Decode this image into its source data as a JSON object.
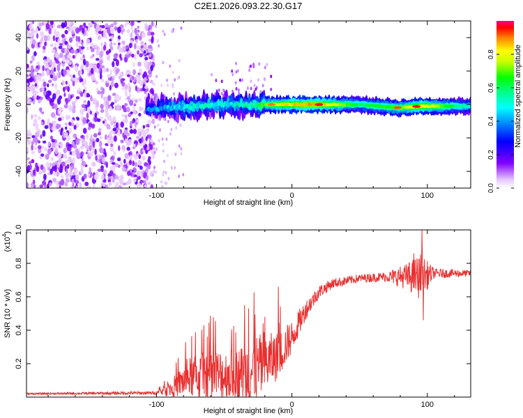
{
  "page": {
    "title": "C2E1.2026.093.22.30.G17"
  },
  "chart_data": [
    {
      "type": "heatmap",
      "title": "C2E1.2026.093.22.30.G17",
      "xlabel": "Height of straight line (km)",
      "ylabel": "Frequency (Hz)",
      "xlim": [
        -196,
        132
      ],
      "ylim": [
        -50,
        50
      ],
      "x_ticks": [
        {
          "v": -100,
          "label": "-100"
        },
        {
          "v": 0,
          "label": "0"
        },
        {
          "v": 100,
          "label": "100"
        }
      ],
      "y_ticks": [
        {
          "v": 40,
          "label": "40"
        },
        {
          "v": 20,
          "label": "20"
        },
        {
          "v": 0,
          "label": "0"
        },
        {
          "v": -20,
          "label": "-20"
        },
        {
          "v": -40,
          "label": "-40"
        }
      ],
      "colorbar": {
        "label": "Normalized spectral amplitude",
        "range": [
          0,
          1
        ],
        "ticks": [
          {
            "v": 0.0,
            "label": "0.0"
          },
          {
            "v": 0.2,
            "label": "0.2"
          },
          {
            "v": 0.4,
            "label": "0.4"
          },
          {
            "v": 0.6,
            "label": "0.6"
          },
          {
            "v": 0.8,
            "label": "0.8"
          }
        ]
      },
      "noise_region_x": [
        -196,
        -102
      ],
      "signal_track": [
        {
          "x": -107,
          "f": -3,
          "amp": 0.35
        },
        {
          "x": -90,
          "f": -2,
          "amp": 0.45
        },
        {
          "x": -70,
          "f": -1,
          "amp": 0.5
        },
        {
          "x": -50,
          "f": 0,
          "amp": 0.5
        },
        {
          "x": -30,
          "f": 0,
          "amp": 0.55
        },
        {
          "x": -15,
          "f": 0,
          "amp": 0.75
        },
        {
          "x": 0,
          "f": 0,
          "amp": 0.85
        },
        {
          "x": 20,
          "f": 0,
          "amp": 0.9
        },
        {
          "x": 50,
          "f": 0,
          "amp": 0.6
        },
        {
          "x": 80,
          "f": -2,
          "amp": 0.7
        },
        {
          "x": 95,
          "f": -1,
          "amp": 0.85
        },
        {
          "x": 132,
          "f": -1,
          "amp": 0.5
        }
      ]
    },
    {
      "type": "line",
      "xlabel": "Height of straight line (km)",
      "ylabel": "SNR (10 * v/v)",
      "scale_label": "(x10",
      "scale_exponent": "4",
      "scale_close": ")",
      "xlim": [
        -196,
        132
      ],
      "ylim": [
        0,
        1.0
      ],
      "x_ticks": [
        {
          "v": -100,
          "label": "-100"
        },
        {
          "v": 0,
          "label": "0"
        },
        {
          "v": 100,
          "label": "100"
        }
      ],
      "y_ticks": [
        {
          "v": 1.0,
          "label": "1.0"
        },
        {
          "v": 0.8,
          "label": "0.8"
        },
        {
          "v": 0.6,
          "label": "0.6"
        },
        {
          "v": 0.4,
          "label": "0.4"
        },
        {
          "v": 0.2,
          "label": "0.2"
        }
      ],
      "series": [
        {
          "name": "SNR",
          "color": "#e83030",
          "envelope": [
            {
              "x": -196,
              "base": 0.02,
              "spread": 0.005
            },
            {
              "x": -100,
              "base": 0.025,
              "spread": 0.01
            },
            {
              "x": -90,
              "base": 0.05,
              "spread": 0.05
            },
            {
              "x": -75,
              "base": 0.12,
              "spread": 0.12
            },
            {
              "x": -60,
              "base": 0.12,
              "spread": 0.17
            },
            {
              "x": -40,
              "base": 0.14,
              "spread": 0.15
            },
            {
              "x": -30,
              "base": 0.15,
              "spread": 0.22
            },
            {
              "x": -20,
              "base": 0.2,
              "spread": 0.18
            },
            {
              "x": -10,
              "base": 0.25,
              "spread": 0.14
            },
            {
              "x": 0,
              "base": 0.36,
              "spread": 0.1
            },
            {
              "x": 10,
              "base": 0.52,
              "spread": 0.06
            },
            {
              "x": 20,
              "base": 0.63,
              "spread": 0.04
            },
            {
              "x": 30,
              "base": 0.68,
              "spread": 0.03
            },
            {
              "x": 50,
              "base": 0.71,
              "spread": 0.025
            },
            {
              "x": 70,
              "base": 0.72,
              "spread": 0.03
            },
            {
              "x": 85,
              "base": 0.72,
              "spread": 0.08
            },
            {
              "x": 95,
              "base": 0.72,
              "spread": 0.14
            },
            {
              "x": 105,
              "base": 0.74,
              "spread": 0.03
            },
            {
              "x": 132,
              "base": 0.74,
              "spread": 0.02
            }
          ],
          "spikes": [
            {
              "x": 96,
              "y": 1.0
            },
            {
              "x": 97,
              "y": 0.46
            },
            {
              "x": 90,
              "y": 0.86
            },
            {
              "x": -35,
              "y": 0.55
            },
            {
              "x": -10,
              "y": 0.66
            },
            {
              "x": -32,
              "y": 0.53
            },
            {
              "x": -20,
              "y": 0.48
            }
          ]
        }
      ]
    }
  ]
}
